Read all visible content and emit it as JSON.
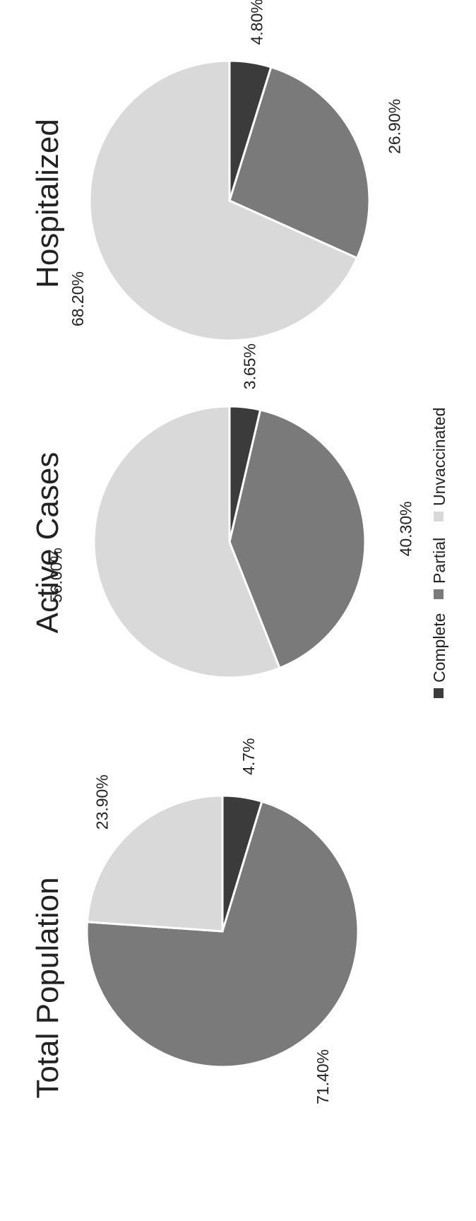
{
  "legend": {
    "position": "bottom",
    "items": [
      {
        "label": "Complete",
        "color": "#3b3b3b"
      },
      {
        "label": "Partial",
        "color": "#7a7a7a"
      },
      {
        "label": "Unvaccinated",
        "color": "#d9d9d9"
      }
    ]
  },
  "chart_data": [
    {
      "type": "pie",
      "title": "Total Population",
      "slices": [
        {
          "series": "Complete",
          "value": 4.7,
          "label": "4.7%"
        },
        {
          "series": "Partial",
          "value": 71.4,
          "label": "71.40%"
        },
        {
          "series": "Unvaccinated",
          "value": 23.9,
          "label": "23.90%"
        }
      ]
    },
    {
      "type": "pie",
      "title": "Active Cases",
      "slices": [
        {
          "series": "Complete",
          "value": 3.65,
          "label": "3.65%"
        },
        {
          "series": "Partial",
          "value": 40.3,
          "label": "40.30%"
        },
        {
          "series": "Unvaccinated",
          "value": 56.0,
          "label": "56.00%"
        }
      ]
    },
    {
      "type": "pie",
      "title": "Hospitalized",
      "slices": [
        {
          "series": "Complete",
          "value": 4.8,
          "label": "4.80%"
        },
        {
          "series": "Partial",
          "value": 26.9,
          "label": "26.90%"
        },
        {
          "series": "Unvaccinated",
          "value": 68.2,
          "label": "68.20%"
        }
      ]
    }
  ]
}
